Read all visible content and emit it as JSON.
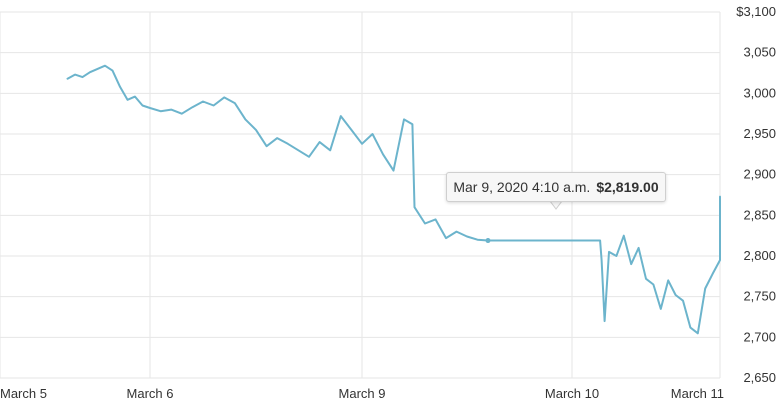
{
  "chart_data": {
    "type": "line",
    "title": "",
    "xlabel": "",
    "ylabel": "",
    "ylim": [
      2650,
      3100
    ],
    "y_ticks": [
      2650,
      2700,
      2750,
      2800,
      2850,
      2900,
      2950,
      3000,
      3050,
      3100
    ],
    "y_tick_labels": [
      "2,650",
      "2,700",
      "2,750",
      "2,800",
      "2,850",
      "2,900",
      "2,950",
      "3,000",
      "3,050",
      "$3,100"
    ],
    "x_tick_labels": [
      "March 5",
      "March 6",
      "March 9",
      "March 10",
      "March 11"
    ],
    "grid": true,
    "legend": "none",
    "colors": {
      "line": "#6cb4cc",
      "grid": "#e6e6e6"
    },
    "series": [
      {
        "values": [
          [
            0.45,
            3018
          ],
          [
            0.5,
            3023
          ],
          [
            0.55,
            3020
          ],
          [
            0.6,
            3026
          ],
          [
            0.65,
            3030
          ],
          [
            0.7,
            3034
          ],
          [
            0.75,
            3028
          ],
          [
            0.8,
            3008
          ],
          [
            0.85,
            2992
          ],
          [
            0.9,
            2996
          ],
          [
            0.95,
            2985
          ],
          [
            1.0,
            2982
          ],
          [
            1.05,
            2978
          ],
          [
            1.1,
            2980
          ],
          [
            1.15,
            2975
          ],
          [
            1.2,
            2983
          ],
          [
            1.25,
            2990
          ],
          [
            1.3,
            2985
          ],
          [
            1.35,
            2995
          ],
          [
            1.4,
            2988
          ],
          [
            1.45,
            2968
          ],
          [
            1.5,
            2955
          ],
          [
            1.55,
            2935
          ],
          [
            1.6,
            2945
          ],
          [
            1.65,
            2938
          ],
          [
            1.7,
            2930
          ],
          [
            1.75,
            2922
          ],
          [
            1.8,
            2940
          ],
          [
            1.85,
            2930
          ],
          [
            1.9,
            2972
          ],
          [
            1.95,
            2955
          ],
          [
            2.0,
            2938
          ],
          [
            2.05,
            2950
          ],
          [
            2.1,
            2925
          ],
          [
            2.15,
            2905
          ],
          [
            2.2,
            2968
          ],
          [
            2.24,
            2962
          ],
          [
            2.25,
            2860
          ],
          [
            2.3,
            2840
          ],
          [
            2.35,
            2845
          ],
          [
            2.4,
            2822
          ],
          [
            2.45,
            2830
          ],
          [
            2.5,
            2824
          ],
          [
            2.55,
            2820
          ],
          [
            2.6,
            2819
          ],
          [
            2.7,
            2819
          ],
          [
            2.8,
            2819
          ],
          [
            2.9,
            2819
          ],
          [
            3.0,
            2819
          ],
          [
            3.05,
            2819
          ],
          [
            3.1,
            2819
          ],
          [
            3.15,
            2819
          ],
          [
            3.19,
            2819
          ],
          [
            3.2,
            2795
          ],
          [
            3.22,
            2720
          ],
          [
            3.25,
            2805
          ],
          [
            3.3,
            2800
          ],
          [
            3.35,
            2825
          ],
          [
            3.4,
            2790
          ],
          [
            3.45,
            2810
          ],
          [
            3.5,
            2772
          ],
          [
            3.55,
            2765
          ],
          [
            3.6,
            2735
          ],
          [
            3.65,
            2770
          ],
          [
            3.7,
            2752
          ],
          [
            3.75,
            2745
          ],
          [
            3.8,
            2712
          ],
          [
            3.85,
            2705
          ],
          [
            3.9,
            2760
          ],
          [
            3.95,
            2778
          ],
          [
            4.0,
            2795
          ],
          [
            4.05,
            2812
          ],
          [
            4.1,
            2822
          ],
          [
            4.15,
            2808
          ],
          [
            4.2,
            2815
          ],
          [
            4.25,
            2810
          ],
          [
            4.3,
            2812
          ],
          [
            4.35,
            2818
          ],
          [
            4.4,
            2823
          ],
          [
            4.45,
            2832
          ],
          [
            4.5,
            2848
          ],
          [
            4.55,
            2842
          ],
          [
            4.6,
            2822
          ],
          [
            4.62,
            2808
          ],
          [
            4.65,
            2832
          ],
          [
            4.7,
            2845
          ],
          [
            4.75,
            2862
          ],
          [
            4.8,
            2873
          ]
        ]
      }
    ],
    "marker_points": [
      [
        2.6,
        2819
      ]
    ],
    "tooltip": {
      "date": "Mar 9, 2020 4:10 a.m.",
      "value": "$2,819.00"
    }
  }
}
